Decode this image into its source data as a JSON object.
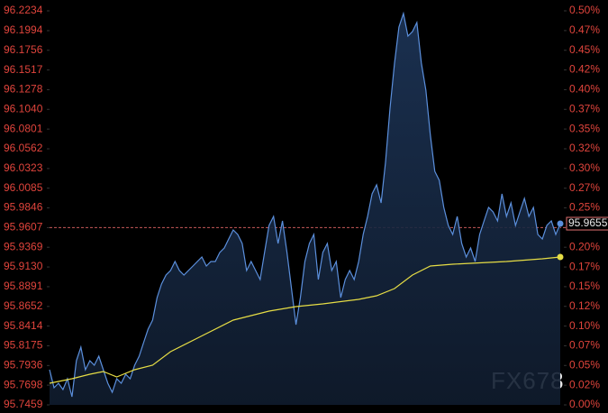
{
  "chart_data": {
    "type": "line",
    "watermark": "FX678",
    "xlim": [
      0,
      114
    ],
    "ylim": [
      95.7459,
      96.2234
    ],
    "yticks": [
      96.2234,
      96.1994,
      96.1756,
      96.1517,
      96.1278,
      {
        "value": 96.104,
        "label": "96.1040"
      },
      96.0801,
      96.0562,
      96.0323,
      96.0085,
      95.9846,
      95.9607,
      95.9369,
      {
        "value": 95.913,
        "label": "95.9130"
      },
      95.8891,
      95.8652,
      95.8414,
      95.8175,
      95.7936,
      95.7698,
      95.7459
    ],
    "y2lim": [
      0,
      0.4987
    ],
    "y2ticks": [
      {
        "value": 0.4987,
        "label": "0.50%"
      },
      {
        "value": 0.4737,
        "label": "0.47%"
      },
      {
        "value": 0.4488,
        "label": "0.45%"
      },
      {
        "value": 0.4239,
        "label": "0.42%"
      },
      {
        "value": 0.3989,
        "label": "0.40%"
      },
      {
        "value": 0.374,
        "label": "0.37%"
      },
      {
        "value": 0.3491,
        "label": "0.35%"
      },
      {
        "value": 0.3241,
        "label": "0.32%"
      },
      {
        "value": 0.2992,
        "label": "0.30%"
      },
      {
        "value": 0.2742,
        "label": "0.27%"
      },
      {
        "value": 0.2493,
        "label": "0.25%"
      },
      {
        "value": 0.2244,
        "label": "0.22%"
      },
      {
        "value": 0.1995,
        "label": "0.20%"
      },
      {
        "value": 0.1745,
        "label": "0.17%"
      },
      {
        "value": 0.1496,
        "label": "0.15%"
      },
      {
        "value": 0.1247,
        "label": "0.12%"
      },
      {
        "value": 0.0997,
        "label": "0.10%"
      },
      {
        "value": 0.0748,
        "label": "0.07%"
      },
      {
        "value": 0.0499,
        "label": "0.05%"
      },
      {
        "value": 0.0249,
        "label": "0.02%"
      },
      {
        "value": 0,
        "label": "0.00%"
      }
    ],
    "reference_line": 95.9607,
    "last_value": 95.9655,
    "series": [
      {
        "color": "#5b8fdc",
        "values": [
          95.7885,
          95.7667,
          95.7721,
          95.7645,
          95.7776,
          95.7557,
          95.7994,
          95.8158,
          95.7885,
          95.7994,
          95.794,
          95.8049,
          95.7885,
          95.7721,
          95.7612,
          95.7776,
          95.7721,
          95.783,
          95.7776,
          95.794,
          95.8049,
          95.8213,
          95.8377,
          95.8486,
          95.8759,
          95.8923,
          95.9032,
          95.9087,
          95.9196,
          95.9087,
          95.9032,
          95.9087,
          95.9142,
          95.9196,
          95.9251,
          95.9142,
          95.9196,
          95.9196,
          95.9306,
          95.936,
          95.947,
          95.9579,
          95.9524,
          95.9415,
          95.9087,
          95.9196,
          95.9087,
          95.8978,
          95.9306,
          95.9633,
          95.9743,
          95.9415,
          95.9688,
          95.9306,
          95.8869,
          95.8431,
          95.8759,
          95.9196,
          95.9415,
          95.9524,
          95.8978,
          95.9306,
          95.9415,
          95.9087,
          95.9196,
          95.8759,
          95.8978,
          95.9087,
          95.8978,
          95.9196,
          95.9524,
          95.9743,
          96.0016,
          96.0125,
          95.9907,
          96.0398,
          96.1054,
          96.16,
          96.2037,
          96.2201,
          96.1928,
          96.1983,
          96.2092,
          96.16,
          96.1272,
          96.0726,
          96.0289,
          96.018,
          95.9852,
          95.9633,
          95.9524,
          95.9743,
          95.9415,
          95.9251,
          95.936,
          95.9196,
          95.9524,
          95.9688,
          95.9852,
          95.9797,
          95.9688,
          96.0016,
          95.9743,
          95.9907,
          95.9633,
          95.9797,
          95.9961,
          95.9743,
          95.9852,
          95.9524,
          95.947,
          95.9633,
          95.9688,
          95.9524,
          95.9655
        ]
      },
      {
        "color": "#e6dd45",
        "x": [
          0,
          5,
          9,
          12,
          15,
          19,
          23,
          27,
          33,
          41,
          49,
          55,
          61,
          69,
          73,
          77,
          81,
          85,
          90,
          94,
          102,
          110,
          114
        ],
        "values": [
          95.7721,
          95.7776,
          95.783,
          95.7863,
          95.7798,
          95.7885,
          95.794,
          95.8104,
          95.8268,
          95.8486,
          95.8595,
          95.865,
          95.8683,
          95.8737,
          95.8781,
          95.8869,
          95.9032,
          95.9142,
          95.9164,
          95.9175,
          95.9196,
          95.9229,
          95.9251
        ]
      }
    ]
  }
}
